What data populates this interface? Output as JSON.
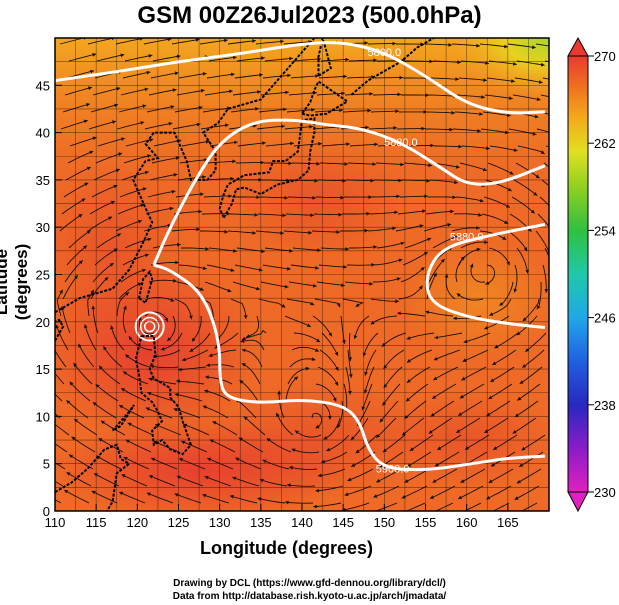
{
  "title": "GSM 00Z26Jul2023 (500.0hPa)",
  "xlabel": "Longitude (degrees)",
  "ylabel": "Latitude  (degrees)",
  "credits": {
    "line1": "Drawing by DCL (https://www.gfd-dennou.org/library/dcl/)",
    "line2": "Data from http://database.rish.kyoto-u.ac.jp/arch/jmadata/"
  },
  "chart_data": {
    "type": "heatmap",
    "description": "Temperature field with streamlines and geopotential height contours",
    "xlim": [
      110,
      170
    ],
    "ylim": [
      0,
      50
    ],
    "x_ticks": [
      110,
      115,
      120,
      125,
      130,
      135,
      140,
      145,
      150,
      155,
      160,
      165
    ],
    "y_ticks": [
      0,
      5,
      10,
      15,
      20,
      25,
      30,
      35,
      40,
      45
    ],
    "grid": true,
    "colorbar": {
      "min": 230,
      "max": 270,
      "ticks": [
        230,
        238,
        246,
        254,
        262,
        270
      ],
      "colors": [
        "#e020c0",
        "#8020c0",
        "#2030c0",
        "#2080e0",
        "#20c0e0",
        "#20c080",
        "#40c020",
        "#a0d020",
        "#e0e020",
        "#f0a020",
        "#f07020",
        "#e84030"
      ]
    },
    "contours": [
      {
        "label": "5800.0",
        "points": [
          [
            110,
            45.5
          ],
          [
            118,
            46.5
          ],
          [
            125,
            47.5
          ],
          [
            133,
            48.4
          ],
          [
            140,
            49.4
          ],
          [
            145,
            49.6
          ],
          [
            150,
            48.5
          ],
          [
            155,
            46.0
          ],
          [
            160,
            43.0
          ],
          [
            165,
            42.0
          ],
          [
            169.5,
            42.2
          ]
        ]
      },
      {
        "label": "5880.0",
        "points": [
          [
            122,
            26
          ],
          [
            124,
            30
          ],
          [
            127,
            35
          ],
          [
            130,
            39
          ],
          [
            134,
            41.2
          ],
          [
            139,
            41.4
          ],
          [
            143,
            40.8
          ],
          [
            147,
            40.5
          ],
          [
            152,
            39.0
          ],
          [
            157,
            36.2
          ],
          [
            160,
            34.5
          ],
          [
            164,
            34.6
          ],
          [
            169.5,
            36.5
          ]
        ]
      },
      {
        "label": "5880.0",
        "points": [
          [
            169.5,
            30.3
          ],
          [
            162,
            29.0
          ],
          [
            157,
            27.8
          ],
          [
            155,
            25
          ],
          [
            155.5,
            22
          ],
          [
            160,
            20.5
          ],
          [
            165,
            19.8
          ],
          [
            169.5,
            19.4
          ]
        ]
      },
      {
        "label": "5900.0",
        "points": [
          [
            169.5,
            5.8
          ],
          [
            165,
            5.6
          ],
          [
            160,
            4.9
          ],
          [
            155,
            4.3
          ],
          [
            150,
            4.5
          ],
          [
            148,
            6.5
          ],
          [
            147,
            9.5
          ],
          [
            145,
            11.2
          ],
          [
            140,
            11.8
          ],
          [
            135,
            11.4
          ],
          [
            131,
            11.9
          ],
          [
            130,
            13.5
          ],
          [
            130,
            18
          ],
          [
            128,
            23
          ],
          [
            124,
            25.5
          ],
          [
            122,
            26
          ]
        ]
      }
    ],
    "contour_labels": [
      "5800.0",
      "5880.0",
      "5880.0",
      "5900.0"
    ],
    "vortices": [
      {
        "lon": 121.5,
        "lat": 19.5
      },
      {
        "lon": 141.5,
        "lat": 9.5
      },
      {
        "lon": 162.5,
        "lat": 25.5
      }
    ]
  }
}
